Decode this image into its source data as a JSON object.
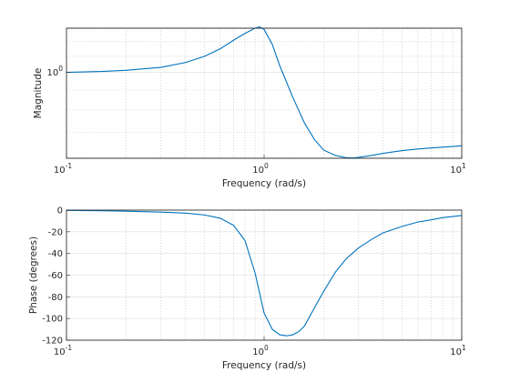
{
  "chart_data": [
    {
      "type": "line",
      "xscale": "log",
      "yscale": "log",
      "xlim": [
        0.1,
        10
      ],
      "ylim": [
        0.6,
        1.3
      ],
      "grid": true,
      "xlabel": "Frequency (rad/s)",
      "ylabel": "Magnitude",
      "x_ticks": [
        {
          "v": 0.1,
          "b": "10",
          "e": "-1"
        },
        {
          "v": 1,
          "b": "10",
          "e": "0"
        },
        {
          "v": 10,
          "b": "10",
          "e": "1"
        }
      ],
      "y_ticks": [
        {
          "v": 1,
          "b": "10",
          "e": "0"
        }
      ],
      "color": "#0072bd",
      "series": [
        {
          "x": [
            0.1,
            0.15,
            0.2,
            0.3,
            0.4,
            0.5,
            0.6,
            0.7,
            0.8,
            0.9,
            0.95,
            1.0,
            1.1,
            1.2,
            1.4,
            1.6,
            1.8,
            2.0,
            2.3,
            2.6,
            2.8,
            3.0,
            3.5,
            4.0,
            5.0,
            6.0,
            7.0,
            8.0,
            10.0
          ],
          "y": [
            1.0,
            1.005,
            1.012,
            1.03,
            1.06,
            1.1,
            1.15,
            1.21,
            1.26,
            1.3,
            1.31,
            1.29,
            1.18,
            1.04,
            0.86,
            0.74,
            0.67,
            0.63,
            0.61,
            0.602,
            0.601,
            0.603,
            0.61,
            0.618,
            0.628,
            0.634,
            0.638,
            0.641,
            0.646
          ]
        }
      ]
    },
    {
      "type": "line",
      "xscale": "log",
      "xlim": [
        0.1,
        10
      ],
      "ylim": [
        -120,
        0
      ],
      "grid": true,
      "xlabel": "Frequency (rad/s)",
      "ylabel": "Phase (degrees)",
      "x_ticks": [
        {
          "v": 0.1,
          "b": "10",
          "e": "-1"
        },
        {
          "v": 1,
          "b": "10",
          "e": "0"
        },
        {
          "v": 10,
          "b": "10",
          "e": "1"
        }
      ],
      "y_ticks": [
        {
          "v": 0,
          "t": "0"
        },
        {
          "v": -20,
          "t": "-20"
        },
        {
          "v": -40,
          "t": "-40"
        },
        {
          "v": -60,
          "t": "-60"
        },
        {
          "v": -80,
          "t": "-80"
        },
        {
          "v": -100,
          "t": "-100"
        },
        {
          "v": -120,
          "t": "-120"
        }
      ],
      "color": "#0072bd",
      "series": [
        {
          "x": [
            0.1,
            0.15,
            0.2,
            0.3,
            0.4,
            0.5,
            0.6,
            0.7,
            0.8,
            0.9,
            1.0,
            1.1,
            1.2,
            1.3,
            1.4,
            1.5,
            1.6,
            1.8,
            2.0,
            2.3,
            2.6,
            3.0,
            3.5,
            4.0,
            5.0,
            6.0,
            7.0,
            8.0,
            10.0
          ],
          "y": [
            -0.3,
            -0.6,
            -1.0,
            -1.8,
            -2.8,
            -4.5,
            -7.5,
            -14,
            -28,
            -58,
            -95,
            -110,
            -115,
            -116,
            -115,
            -112,
            -107,
            -90,
            -75,
            -57,
            -45,
            -35,
            -27,
            -21,
            -15,
            -11,
            -9,
            -7,
            -5
          ]
        }
      ]
    }
  ]
}
